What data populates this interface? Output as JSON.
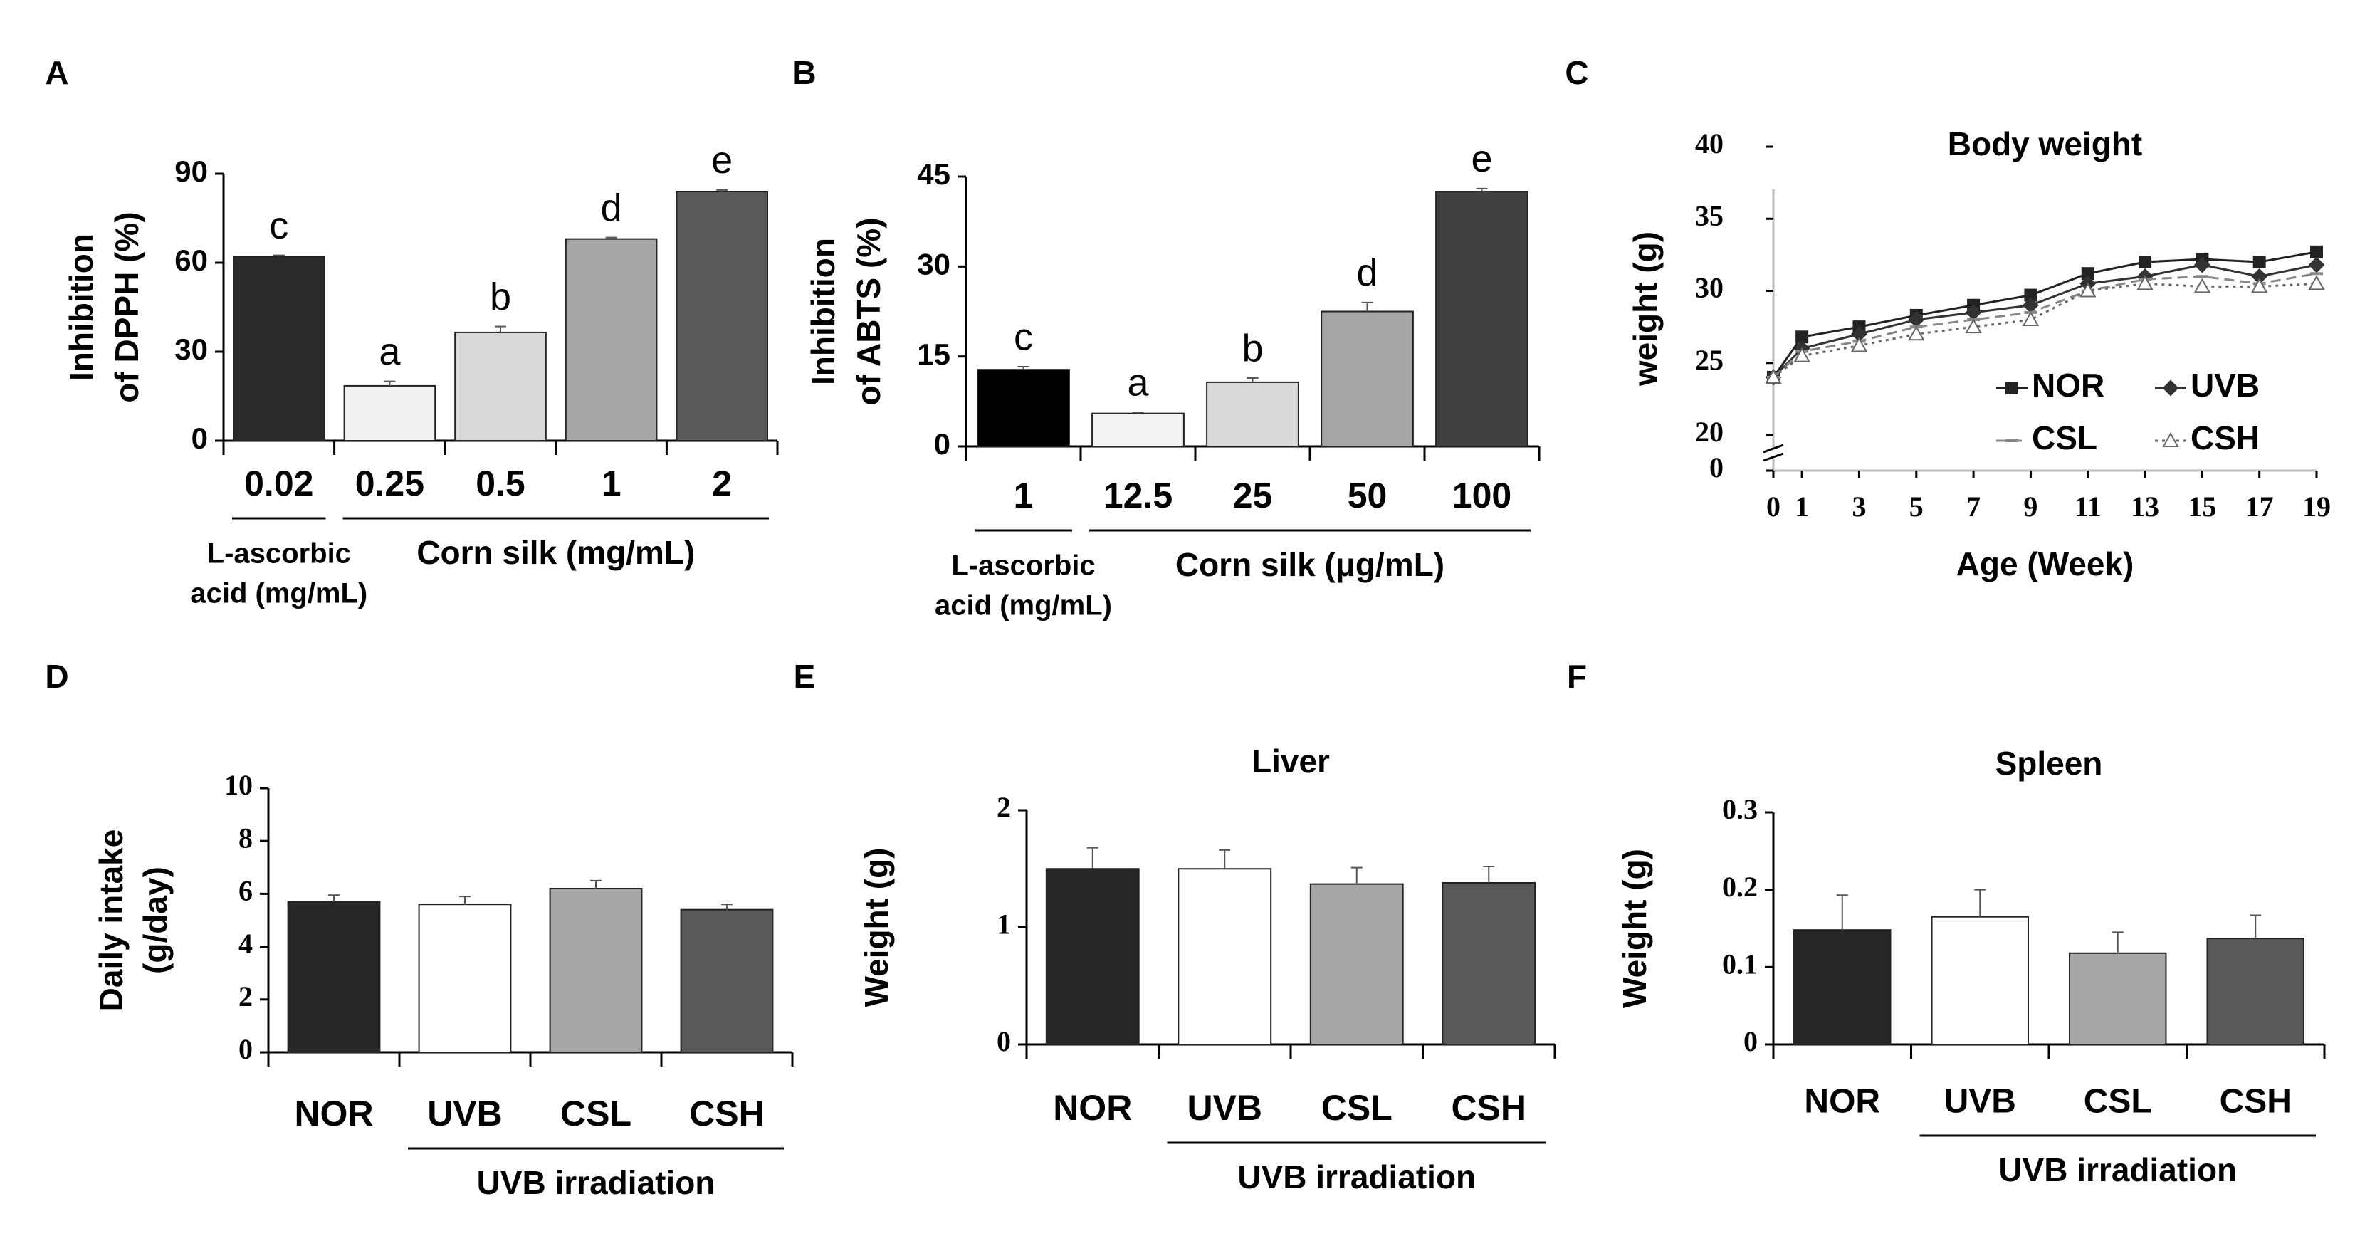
{
  "chart_data": [
    {
      "type": "bar",
      "panel": "A",
      "ylabel": [
        "Inhibition",
        "of DPPH (%)"
      ],
      "categories": [
        "0.02",
        "0.25",
        "0.5",
        "1",
        "2"
      ],
      "values": [
        62,
        18.5,
        36.5,
        68,
        84
      ],
      "errors": [
        0.5,
        1.5,
        2,
        0.5,
        0.5
      ],
      "annotations": [
        "c",
        "a",
        "b",
        "d",
        "e"
      ],
      "colors": [
        "#2b2b2b",
        "#f0f0f0",
        "#d9d9d9",
        "#a6a6a6",
        "#595959"
      ],
      "ylim": [
        0,
        90
      ],
      "yticks": [
        0,
        30,
        60,
        90
      ],
      "groups": [
        {
          "label": [
            "L-ascorbic",
            "acid (mg/mL)"
          ],
          "members": [
            "0.02"
          ]
        },
        {
          "label": [
            "Corn silk (mg/mL)"
          ],
          "members": [
            "0.25",
            "0.5",
            "1",
            "2"
          ]
        }
      ]
    },
    {
      "type": "bar",
      "panel": "B",
      "ylabel": [
        "Inhibition",
        "of ABTS (%)"
      ],
      "categories": [
        "1",
        "12.5",
        "25",
        "50",
        "100"
      ],
      "values": [
        12.8,
        5.5,
        10.7,
        22.5,
        42.5
      ],
      "errors": [
        0.5,
        0.2,
        0.7,
        1.5,
        0.5
      ],
      "annotations": [
        "c",
        "a",
        "b",
        "d",
        "e"
      ],
      "colors": [
        "#000000",
        "#f2f2f2",
        "#d9d9d9",
        "#a6a6a6",
        "#404040"
      ],
      "ylim": [
        0,
        45
      ],
      "yticks": [
        0,
        15,
        30,
        45
      ],
      "groups": [
        {
          "label": [
            "L-ascorbic",
            "acid (mg/mL)"
          ],
          "members": [
            "1"
          ]
        },
        {
          "label": [
            "Corn silk (μg/mL)"
          ],
          "members": [
            "12.5",
            "25",
            "50",
            "100"
          ]
        }
      ]
    },
    {
      "type": "line",
      "panel": "C",
      "title": "Body weight",
      "ylabel": [
        "weight (g)"
      ],
      "xlabel": "Age (Week)",
      "x": [
        0,
        1,
        3,
        5,
        7,
        9,
        11,
        13,
        15,
        17,
        19
      ],
      "xlim": [
        0,
        19
      ],
      "xticks": [
        0,
        1,
        3,
        5,
        7,
        9,
        11,
        13,
        15,
        17,
        19
      ],
      "ylim": [
        0,
        40
      ],
      "axis_break": [
        0,
        20
      ],
      "yticks": [
        0,
        20,
        25,
        30,
        35,
        40
      ],
      "legend": "lower right",
      "series": [
        {
          "name": "NOR",
          "color": "#222222",
          "marker": "square",
          "dash": "solid",
          "values": [
            24,
            26.8,
            27.5,
            28.3,
            29,
            29.7,
            31.2,
            32,
            32.2,
            32,
            32.7
          ]
        },
        {
          "name": "UVB",
          "color": "#333333",
          "marker": "diamond",
          "dash": "solid",
          "values": [
            24,
            26,
            27,
            28,
            28.5,
            29,
            30.5,
            31,
            31.8,
            31,
            31.8
          ]
        },
        {
          "name": "CSL",
          "color": "#888888",
          "marker": "dash",
          "dash": "dashed",
          "values": [
            24,
            25.8,
            26.5,
            27.5,
            28,
            28.5,
            30,
            30.8,
            31,
            30.5,
            31.2
          ]
        },
        {
          "name": "CSH",
          "color": "#666666",
          "marker": "triangle",
          "dash": "dotted",
          "values": [
            24,
            25.5,
            26.2,
            27,
            27.5,
            28,
            30,
            30.5,
            30.3,
            30.3,
            30.5
          ]
        }
      ]
    },
    {
      "type": "bar",
      "panel": "D",
      "ylabel": [
        "Daily intake",
        "(g/day)"
      ],
      "categories": [
        "NOR",
        "UVB",
        "CSL",
        "CSH"
      ],
      "values": [
        5.7,
        5.6,
        6.2,
        5.4
      ],
      "errors": [
        0.25,
        0.3,
        0.3,
        0.2
      ],
      "colors": [
        "#262626",
        "#ffffff",
        "#a6a6a6",
        "#595959"
      ],
      "ylim": [
        0,
        10
      ],
      "yticks": [
        0,
        2,
        4,
        6,
        8,
        10
      ],
      "groups": [
        {
          "label": [
            "UVB irradiation"
          ],
          "members": [
            "UVB",
            "CSL",
            "CSH"
          ]
        }
      ]
    },
    {
      "type": "bar",
      "panel": "E",
      "title": "Liver",
      "ylabel": [
        "Weight (g)"
      ],
      "categories": [
        "NOR",
        "UVB",
        "CSL",
        "CSH"
      ],
      "values": [
        1.5,
        1.5,
        1.37,
        1.38
      ],
      "errors": [
        0.18,
        0.16,
        0.14,
        0.14
      ],
      "colors": [
        "#262626",
        "#ffffff",
        "#a6a6a6",
        "#595959"
      ],
      "ylim": [
        0,
        2
      ],
      "yticks": [
        0,
        1,
        2
      ],
      "groups": [
        {
          "label": [
            "UVB irradiation"
          ],
          "members": [
            "UVB",
            "CSL",
            "CSH"
          ]
        }
      ]
    },
    {
      "type": "bar",
      "panel": "F",
      "title": "Spleen",
      "ylabel": [
        "Weight (g)"
      ],
      "categories": [
        "NOR",
        "UVB",
        "CSL",
        "CSH"
      ],
      "values": [
        0.148,
        0.165,
        0.118,
        0.137
      ],
      "errors": [
        0.045,
        0.035,
        0.027,
        0.03
      ],
      "colors": [
        "#262626",
        "#ffffff",
        "#a6a6a6",
        "#595959"
      ],
      "ylim": [
        0,
        0.3
      ],
      "yticks": [
        0,
        0.1,
        0.2,
        0.3
      ],
      "groups": [
        {
          "label": [
            "UVB irradiation"
          ],
          "members": [
            "UVB",
            "CSL",
            "CSH"
          ]
        }
      ]
    }
  ]
}
